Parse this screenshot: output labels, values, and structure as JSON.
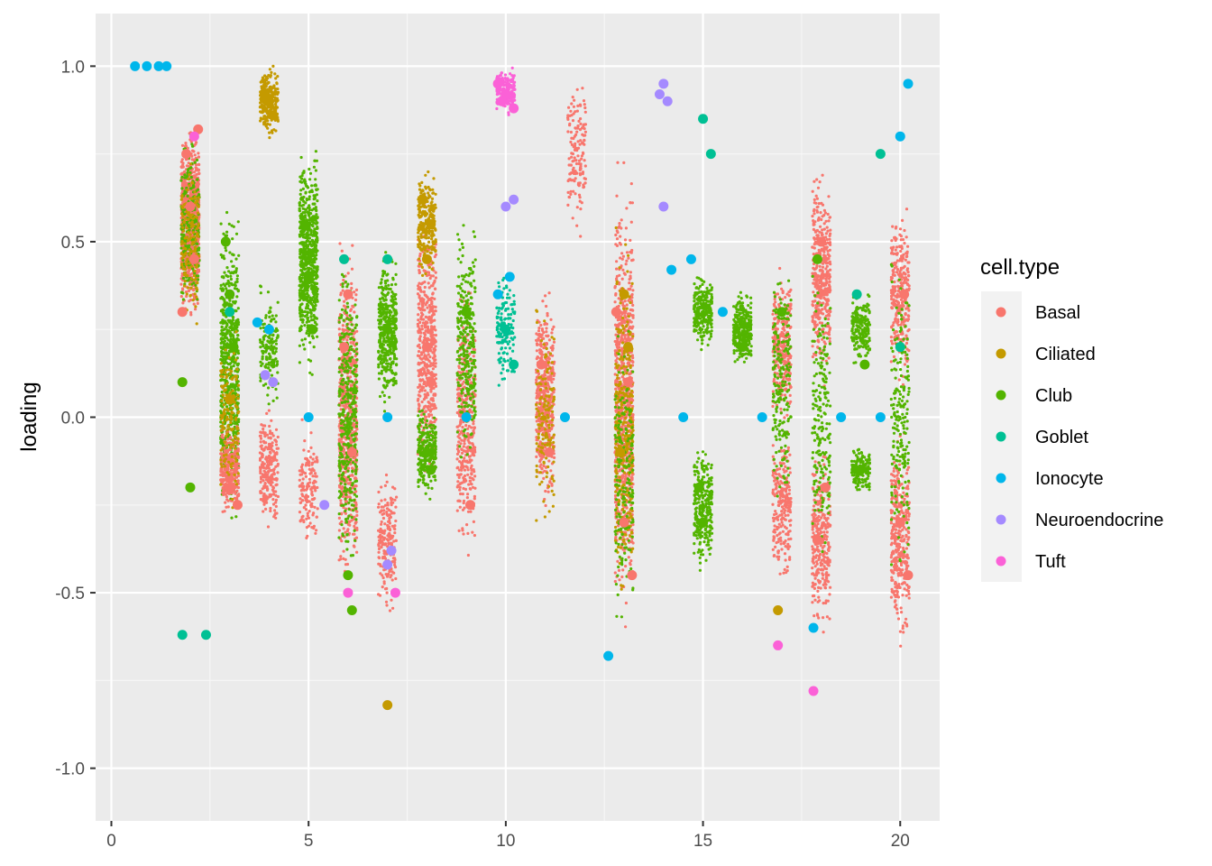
{
  "chart_data": {
    "type": "scatter",
    "title": "",
    "xlabel": "",
    "ylabel": "loading",
    "xlim": [
      -0.4,
      21.0
    ],
    "ylim": [
      -1.15,
      1.15
    ],
    "x_ticks": [
      0,
      5,
      10,
      15,
      20
    ],
    "y_ticks": [
      -1.0,
      -0.5,
      0.0,
      0.5,
      1.0
    ],
    "x_tick_labels": [
      "0",
      "5",
      "10",
      "15",
      "20"
    ],
    "y_tick_labels": [
      "-1.0",
      "-0.5",
      "0.0",
      "0.5",
      "1.0"
    ],
    "grid": true,
    "legend": {
      "title": "cell.type",
      "position": "right",
      "entries": [
        {
          "name": "Basal",
          "color": "#F8766D"
        },
        {
          "name": "Ciliated",
          "color": "#C49A00"
        },
        {
          "name": "Club",
          "color": "#53B400"
        },
        {
          "name": "Goblet",
          "color": "#00C094"
        },
        {
          "name": "Ionocyte",
          "color": "#00B6EB"
        },
        {
          "name": "Neuroendocrine",
          "color": "#A58AFF"
        },
        {
          "name": "Tuft",
          "color": "#FB61D7"
        }
      ]
    },
    "series": [
      {
        "name": "Basal",
        "points": [
          [
            1.9,
            0.75
          ],
          [
            2.0,
            0.6
          ],
          [
            2.1,
            0.45
          ],
          [
            1.8,
            0.3
          ],
          [
            2.2,
            0.82
          ],
          [
            3.0,
            -0.2
          ],
          [
            3.2,
            -0.25
          ],
          [
            5.9,
            0.2
          ],
          [
            6.1,
            -0.1
          ],
          [
            6.0,
            0.35
          ],
          [
            8.0,
            0.2
          ],
          [
            8.1,
            0.1
          ],
          [
            9.1,
            -0.25
          ],
          [
            10.9,
            0.15
          ],
          [
            11.1,
            -0.1
          ],
          [
            12.8,
            0.3
          ],
          [
            13.1,
            0.1
          ],
          [
            13.0,
            -0.3
          ],
          [
            13.2,
            -0.45
          ],
          [
            17.9,
            -0.35
          ],
          [
            18.1,
            -0.2
          ],
          [
            18.0,
            0.5
          ],
          [
            20.0,
            -0.3
          ],
          [
            20.1,
            0.35
          ],
          [
            20.2,
            -0.45
          ]
        ]
      },
      {
        "name": "Ciliated",
        "points": [
          [
            3.9,
            0.92
          ],
          [
            4.1,
            0.86
          ],
          [
            4.0,
            0.9
          ],
          [
            7.9,
            0.62
          ],
          [
            8.1,
            0.55
          ],
          [
            8.0,
            0.45
          ],
          [
            13.0,
            0.35
          ],
          [
            13.1,
            0.2
          ],
          [
            12.9,
            -0.1
          ],
          [
            3.0,
            0.05
          ],
          [
            7.0,
            -0.82
          ],
          [
            16.9,
            -0.55
          ]
        ]
      },
      {
        "name": "Club",
        "points": [
          [
            2.9,
            0.5
          ],
          [
            3.0,
            0.35
          ],
          [
            3.1,
            0.2
          ],
          [
            4.9,
            0.55
          ],
          [
            5.0,
            0.4
          ],
          [
            5.1,
            0.25
          ],
          [
            6.0,
            -0.45
          ],
          [
            6.1,
            -0.55
          ],
          [
            7.0,
            0.25
          ],
          [
            8.0,
            -0.1
          ],
          [
            8.1,
            -0.15
          ],
          [
            9.0,
            0.3
          ],
          [
            14.9,
            -0.2
          ],
          [
            15.0,
            -0.3
          ],
          [
            16.0,
            0.2
          ],
          [
            17.0,
            0.3
          ],
          [
            17.9,
            0.45
          ],
          [
            19.0,
            -0.15
          ],
          [
            19.1,
            0.15
          ],
          [
            2.0,
            -0.2
          ],
          [
            1.8,
            0.1
          ]
        ]
      },
      {
        "name": "Goblet",
        "points": [
          [
            1.8,
            -0.62
          ],
          [
            2.4,
            -0.62
          ],
          [
            5.9,
            0.45
          ],
          [
            7.0,
            0.45
          ],
          [
            10.0,
            0.25
          ],
          [
            10.2,
            0.15
          ],
          [
            15.0,
            0.85
          ],
          [
            15.2,
            0.75
          ],
          [
            19.5,
            0.75
          ],
          [
            20.0,
            0.2
          ],
          [
            18.9,
            0.35
          ],
          [
            3.0,
            0.3
          ]
        ]
      },
      {
        "name": "Ionocyte",
        "points": [
          [
            0.6,
            1.0
          ],
          [
            0.9,
            1.0
          ],
          [
            1.2,
            1.0
          ],
          [
            1.4,
            1.0
          ],
          [
            5.0,
            0.0
          ],
          [
            7.0,
            0.0
          ],
          [
            9.0,
            0.0
          ],
          [
            11.5,
            0.0
          ],
          [
            14.5,
            0.0
          ],
          [
            16.5,
            0.0
          ],
          [
            18.5,
            0.0
          ],
          [
            19.5,
            0.0
          ],
          [
            9.8,
            0.35
          ],
          [
            10.1,
            0.4
          ],
          [
            14.2,
            0.42
          ],
          [
            14.7,
            0.45
          ],
          [
            15.5,
            0.3
          ],
          [
            20.2,
            0.95
          ],
          [
            20.0,
            0.8
          ],
          [
            12.6,
            -0.68
          ],
          [
            17.8,
            -0.6
          ],
          [
            3.7,
            0.27
          ],
          [
            4.0,
            0.25
          ]
        ]
      },
      {
        "name": "Neuroendocrine",
        "points": [
          [
            3.9,
            0.12
          ],
          [
            4.1,
            0.1
          ],
          [
            7.1,
            -0.38
          ],
          [
            7.0,
            -0.42
          ],
          [
            10.0,
            0.6
          ],
          [
            10.2,
            0.62
          ],
          [
            13.9,
            0.92
          ],
          [
            14.1,
            0.9
          ],
          [
            14.0,
            0.95
          ],
          [
            5.4,
            -0.25
          ],
          [
            14.0,
            0.6
          ]
        ]
      },
      {
        "name": "Tuft",
        "points": [
          [
            9.8,
            0.95
          ],
          [
            10.0,
            0.92
          ],
          [
            10.2,
            0.88
          ],
          [
            9.9,
            0.9
          ],
          [
            2.1,
            0.8
          ],
          [
            6.0,
            -0.5
          ],
          [
            7.2,
            -0.5
          ],
          [
            17.8,
            -0.78
          ],
          [
            16.9,
            -0.65
          ]
        ]
      }
    ]
  }
}
